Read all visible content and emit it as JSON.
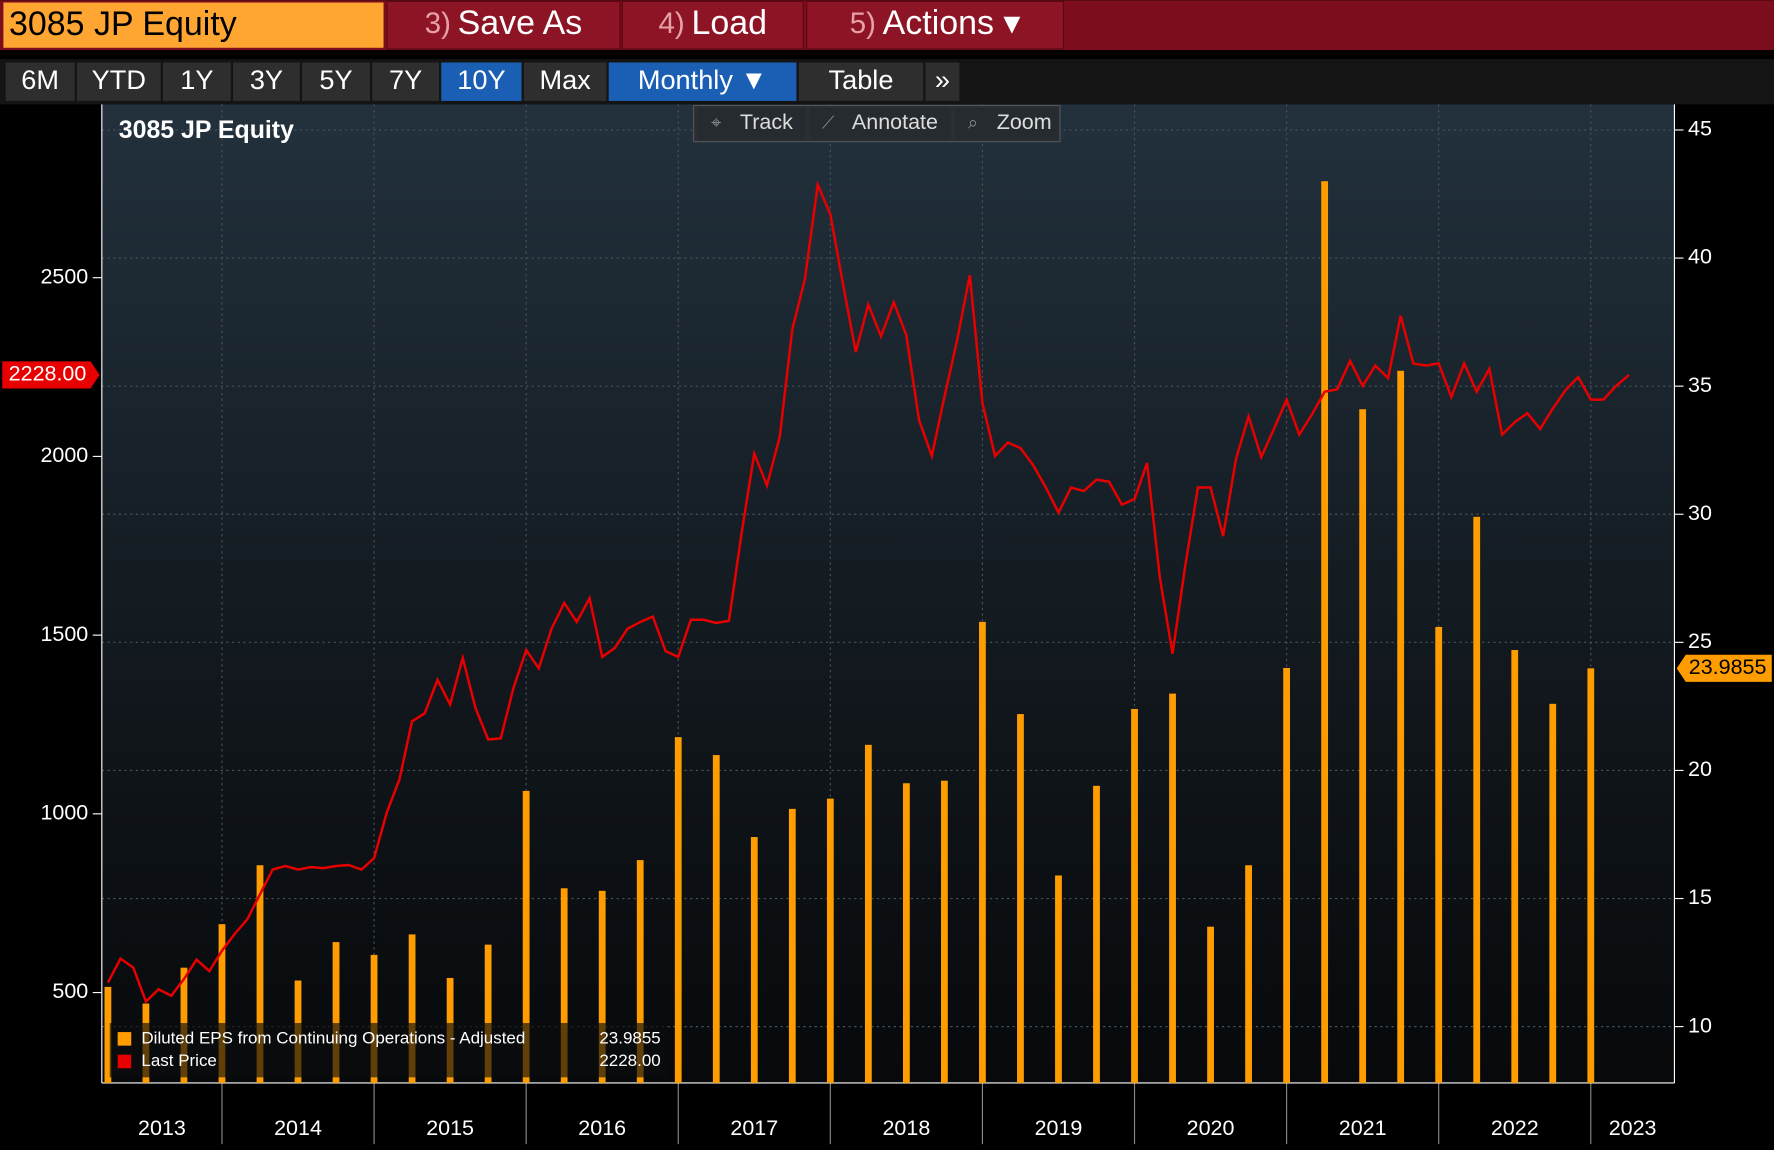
{
  "toolbar": {
    "security": "3085 JP Equity",
    "menu": [
      {
        "num": "3)",
        "label": "Save As"
      },
      {
        "num": "4)",
        "label": "Load"
      },
      {
        "num": "5)",
        "label": "Actions ▾"
      }
    ],
    "ranges": [
      "6M",
      "YTD",
      "1Y",
      "3Y",
      "5Y",
      "7Y",
      "10Y",
      "Max"
    ],
    "period": "Monthly ▼",
    "table": "Table",
    "more": "»",
    "tools": [
      "Track",
      "Annotate",
      "Zoom"
    ]
  },
  "chart_data": {
    "type": "combo",
    "title": "3085 JP Equity",
    "xlim": [
      2013.21,
      2023.55
    ],
    "xticks": [
      2014,
      2015,
      2016,
      2017,
      2018,
      2019,
      2020,
      2021,
      2022,
      2023
    ],
    "year_labels": [
      "2013",
      "2014",
      "2015",
      "2016",
      "2017",
      "2018",
      "2019",
      "2020",
      "2021",
      "2022",
      "2023"
    ],
    "ylim": [
      247,
      2985
    ],
    "yticks": [
      500,
      1000,
      1500,
      2000,
      2500
    ],
    "y2lim": [
      7.8,
      46.0
    ],
    "y2ticks": [
      10,
      15,
      20,
      25,
      30,
      35,
      40,
      45
    ],
    "grid": true,
    "legend": "lower left",
    "series": [
      {
        "name": "Diluted EPS from Continuing Operations - Adjusted",
        "type": "bar",
        "axis": "y2",
        "color": "#ff9d00",
        "x": [
          2013.25,
          2013.5,
          2013.75,
          2014,
          2014.25,
          2014.5,
          2014.75,
          2015,
          2015.25,
          2015.5,
          2015.75,
          2016,
          2016.25,
          2016.5,
          2016.75,
          2017,
          2017.25,
          2017.5,
          2017.75,
          2018,
          2018.25,
          2018.5,
          2018.75,
          2019,
          2019.25,
          2019.5,
          2019.75,
          2020,
          2020.25,
          2020.5,
          2020.75,
          2021,
          2021.25,
          2021.5,
          2021.75,
          2022,
          2022.25,
          2022.5,
          2022.75,
          2023
        ],
        "values": [
          11.55,
          10.9,
          12.3,
          14.0,
          16.3,
          11.8,
          13.3,
          12.8,
          13.6,
          11.9,
          13.2,
          19.2,
          15.4,
          15.3,
          16.5,
          21.3,
          20.6,
          17.4,
          18.5,
          18.9,
          21.0,
          19.5,
          19.6,
          25.8,
          22.2,
          15.9,
          19.4,
          22.4,
          23.0,
          13.9,
          16.3,
          24.0,
          43.0,
          34.1,
          35.6,
          25.6,
          29.9,
          24.7,
          22.6,
          23.9855
        ],
        "last_value_label": "23.9855"
      },
      {
        "name": "Last Price",
        "type": "line",
        "axis": "y",
        "color": "#e80000",
        "x": [
          2013.25,
          2013.333,
          2013.417,
          2013.5,
          2013.583,
          2013.667,
          2013.75,
          2013.833,
          2013.917,
          2014,
          2014.083,
          2014.167,
          2014.25,
          2014.333,
          2014.417,
          2014.5,
          2014.583,
          2014.667,
          2014.75,
          2014.833,
          2014.917,
          2015,
          2015.083,
          2015.167,
          2015.25,
          2015.333,
          2015.417,
          2015.5,
          2015.583,
          2015.667,
          2015.75,
          2015.833,
          2015.917,
          2016,
          2016.083,
          2016.167,
          2016.25,
          2016.333,
          2016.417,
          2016.5,
          2016.583,
          2016.667,
          2016.75,
          2016.833,
          2016.917,
          2017,
          2017.083,
          2017.167,
          2017.25,
          2017.333,
          2017.417,
          2017.5,
          2017.583,
          2017.667,
          2017.75,
          2017.833,
          2017.917,
          2018,
          2018.083,
          2018.167,
          2018.25,
          2018.333,
          2018.417,
          2018.5,
          2018.583,
          2018.667,
          2018.75,
          2018.833,
          2018.917,
          2019,
          2019.083,
          2019.167,
          2019.25,
          2019.333,
          2019.417,
          2019.5,
          2019.583,
          2019.667,
          2019.75,
          2019.833,
          2019.917,
          2020,
          2020.083,
          2020.167,
          2020.25,
          2020.333,
          2020.417,
          2020.5,
          2020.583,
          2020.667,
          2020.75,
          2020.833,
          2020.917,
          2021,
          2021.083,
          2021.167,
          2021.25,
          2021.333,
          2021.417,
          2021.5,
          2021.583,
          2021.667,
          2021.75,
          2021.833,
          2021.917,
          2022,
          2022.083,
          2022.167,
          2022.25,
          2022.333,
          2022.417,
          2022.5,
          2022.583,
          2022.667,
          2022.75,
          2022.833,
          2022.917,
          2023,
          2023.083,
          2023.167,
          2023.25
        ],
        "values": [
          528,
          595,
          570,
          475,
          509,
          491,
          538,
          592,
          560,
          617,
          664,
          705,
          775,
          844,
          854,
          844,
          851,
          848,
          854,
          857,
          844,
          876,
          1003,
          1097,
          1259,
          1281,
          1375,
          1306,
          1436,
          1296,
          1208,
          1211,
          1353,
          1458,
          1407,
          1518,
          1590,
          1537,
          1603,
          1439,
          1464,
          1518,
          1537,
          1552,
          1455,
          1439,
          1543,
          1543,
          1534,
          1540,
          1786,
          2008,
          1919,
          2055,
          2355,
          2497,
          2760,
          2678,
          2482,
          2292,
          2425,
          2336,
          2431,
          2339,
          2102,
          2001,
          2166,
          2324,
          2507,
          2150,
          2001,
          2039,
          2023,
          1976,
          1913,
          1843,
          1913,
          1903,
          1935,
          1929,
          1865,
          1881,
          1982,
          1660,
          1448,
          1692,
          1913,
          1913,
          1777,
          1992,
          2112,
          1998,
          2077,
          2159,
          2061,
          2118,
          2181,
          2188,
          2267,
          2197,
          2254,
          2219,
          2393,
          2260,
          2254,
          2260,
          2166,
          2260,
          2181,
          2245,
          2061,
          2096,
          2121,
          2077,
          2134,
          2185,
          2222,
          2159,
          2159,
          2197,
          2228
        ],
        "last_value_label": "2228.00"
      }
    ]
  }
}
